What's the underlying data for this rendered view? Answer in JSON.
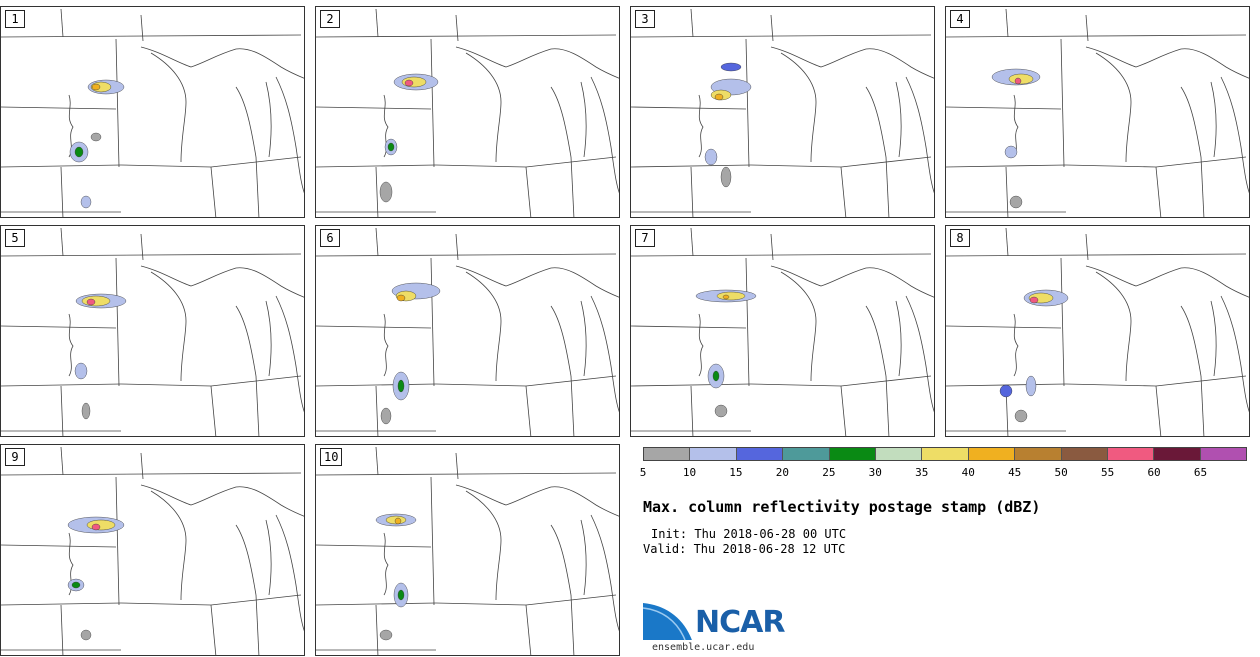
{
  "panels": [
    {
      "label": "1"
    },
    {
      "label": "2"
    },
    {
      "label": "3"
    },
    {
      "label": "4"
    },
    {
      "label": "5"
    },
    {
      "label": "6"
    },
    {
      "label": "7"
    },
    {
      "label": "8"
    },
    {
      "label": "9"
    },
    {
      "label": "10"
    }
  ],
  "legend": {
    "colors": [
      "#a6a6a6",
      "#b4c0ea",
      "#5566dd",
      "#4e9a9a",
      "#0a8a14",
      "#c2ddbe",
      "#eedd66",
      "#f0b020",
      "#b88030",
      "#8a5a40",
      "#f05a80",
      "#6a1838",
      "#b050b0"
    ],
    "ticks": [
      "5",
      "10",
      "15",
      "20",
      "25",
      "30",
      "35",
      "40",
      "45",
      "50",
      "55",
      "60",
      "65"
    ]
  },
  "title": "Max. column reflectivity postage stamp (dBZ)",
  "init": "Init: Thu 2018-06-28 00 UTC",
  "valid": "Valid: Thu 2018-06-28 12 UTC",
  "logo": {
    "text": "NCAR",
    "url": "ensemble.ucar.edu"
  }
}
